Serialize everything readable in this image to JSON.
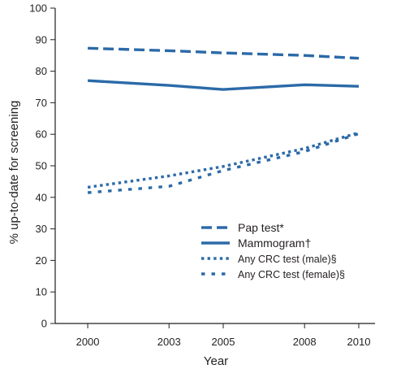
{
  "chart_data": {
    "type": "line",
    "xlabel": "Year",
    "ylabel": "% up-to-date for screening",
    "x": [
      2000,
      2003,
      2005,
      2008,
      2010
    ],
    "xlim": [
      1998.8,
      2010.6
    ],
    "ylim": [
      0,
      100
    ],
    "yticks": [
      0,
      10,
      20,
      30,
      40,
      50,
      60,
      70,
      80,
      90,
      100
    ],
    "grid": false,
    "legend_position": "bottom-right",
    "line_color": "#2b6aa8",
    "series": [
      {
        "name": "Pap test*",
        "values": [
          87.3,
          86.5,
          85.8,
          85.0,
          84.1
        ],
        "style": "dashed"
      },
      {
        "name": "Mammogram†",
        "values": [
          77.0,
          75.5,
          74.2,
          75.7,
          75.2
        ],
        "style": "solid"
      },
      {
        "name": "Any CRC test (male)§",
        "values": [
          43.2,
          46.8,
          49.8,
          55.5,
          60.5
        ],
        "style": "dotted"
      },
      {
        "name": "Any CRC test (female)§",
        "values": [
          41.5,
          43.5,
          48.5,
          54.5,
          60.2
        ],
        "style": "sparse-dotted"
      }
    ]
  }
}
